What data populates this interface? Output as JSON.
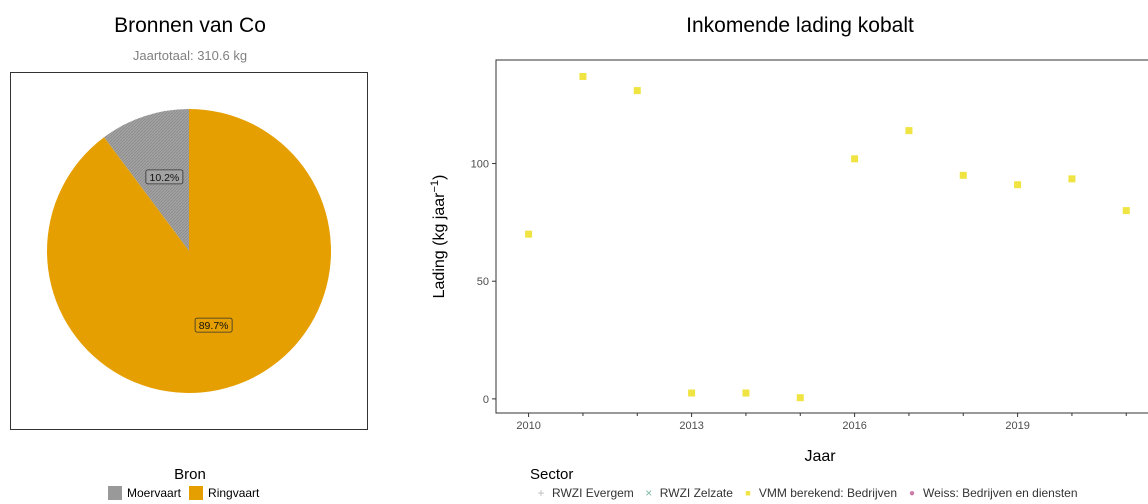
{
  "chart_data": [
    {
      "type": "pie",
      "title": "Bronnen van Co",
      "subtitle": "Jaartotaal: 310.6 kg",
      "legend_title": "Bron",
      "legend_position": "bottom",
      "slices": [
        {
          "name": "Moervaart",
          "value": 10.2,
          "label": "10.2%",
          "color": "#999999"
        },
        {
          "name": "Ringvaart",
          "value": 89.7,
          "label": "89.7%",
          "color": "#E69F00"
        }
      ]
    },
    {
      "type": "scatter",
      "title": "Inkomende lading kobalt",
      "xlabel": "Jaar",
      "ylabel": "Lading (kg jaar",
      "ylabel_sup": "−1",
      "ylabel_close": ")",
      "xlim": [
        2009.4,
        2021.4
      ],
      "ylim": [
        -6,
        144
      ],
      "xticks": [
        2010,
        2013,
        2016,
        2019
      ],
      "yticks": [
        0,
        50,
        100
      ],
      "grid": false,
      "legend_title": "Sector",
      "legend_position": "bottom",
      "series": [
        {
          "name": "RWZI Evergem",
          "marker": "+",
          "color": "#bbbbbb",
          "x": [],
          "y": []
        },
        {
          "name": "RWZI Zelzate",
          "marker": "×",
          "color": "#7fb9a6",
          "x": [],
          "y": []
        },
        {
          "name": "VMM berekend: Bedrijven",
          "marker": "■",
          "color": "#F0E442",
          "x": [
            2010,
            2011,
            2012,
            2013,
            2014,
            2015,
            2016,
            2017,
            2018,
            2019,
            2020,
            2021
          ],
          "y": [
            70,
            137,
            131,
            2.5,
            2.5,
            0.5,
            102,
            114,
            95,
            91,
            93.5,
            80
          ]
        },
        {
          "name": "Weiss: Bedrijven en diensten",
          "marker": "●",
          "color": "#CC79A7",
          "x": [],
          "y": []
        }
      ]
    }
  ]
}
